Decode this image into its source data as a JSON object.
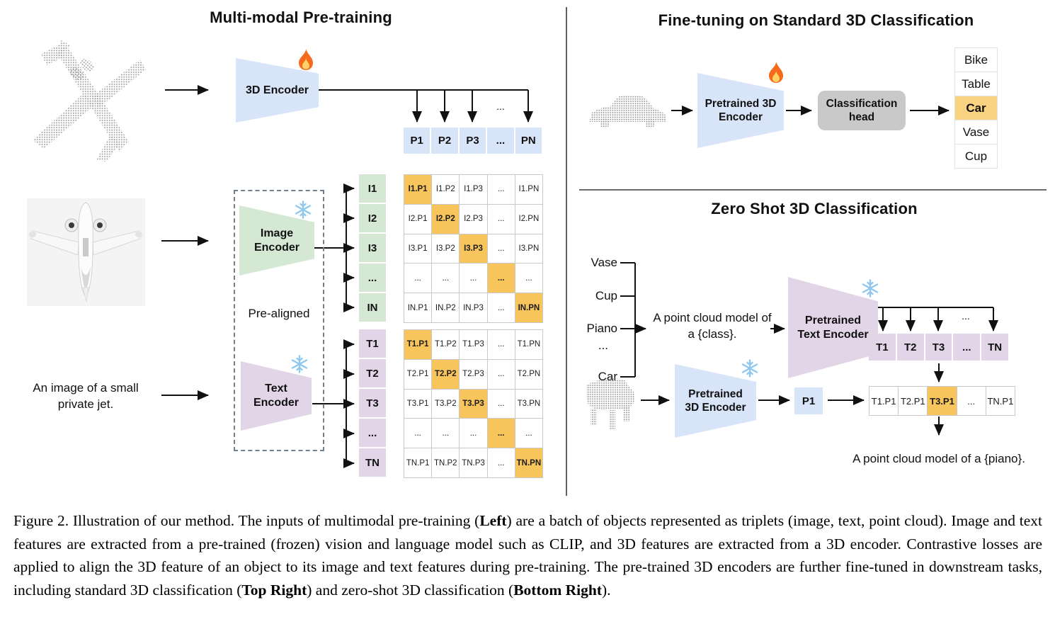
{
  "icons": {
    "trainable": "fire-icon",
    "frozen": "snowflake-icon"
  },
  "colors": {
    "blue_cell": "#d8e4f8",
    "green_cell": "#d5e8d4",
    "purple_cell": "#e1d5e7",
    "orange_highlight": "#f7c55c",
    "orange_soft": "#fad382",
    "gray_head": "#c9c9c9",
    "snowflake_blue": "#8fc8ef",
    "flame_orange": "#f66a1b"
  },
  "misc": {
    "ellipsis": "..."
  },
  "panels": {
    "pretraining": {
      "title": "Multi-modal Pre-training",
      "encoder3d_label": "3D Encoder",
      "image_encoder_label": "Image Encoder",
      "text_encoder_label": "Text Encoder",
      "prealigned_label": "Pre-aligned",
      "image_caption": "An image of a small private jet.",
      "p_row": [
        "P1",
        "P2",
        "P3",
        "...",
        "PN"
      ],
      "image_rows": [
        "I1",
        "I2",
        "I3",
        "...",
        "IN"
      ],
      "text_rows": [
        "T1",
        "T2",
        "T3",
        "...",
        "TN"
      ],
      "image_matrix": [
        [
          "I1.P1",
          "I1.P2",
          "I1.P3",
          "...",
          "I1.PN"
        ],
        [
          "I2.P1",
          "I2.P2",
          "I2.P3",
          "...",
          "I2.PN"
        ],
        [
          "I3.P1",
          "I3.P2",
          "I3.P3",
          "...",
          "I3.PN"
        ],
        [
          "...",
          "...",
          "...",
          "...",
          "..."
        ],
        [
          "IN.P1",
          "IN.P2",
          "IN.P3",
          "...",
          "IN.PN"
        ]
      ],
      "text_matrix": [
        [
          "T1.P1",
          "T1.P2",
          "T1.P3",
          "...",
          "T1.PN"
        ],
        [
          "T2.P1",
          "T2.P2",
          "T2.P3",
          "...",
          "T2.PN"
        ],
        [
          "T3.P1",
          "T3.P2",
          "T3.P3",
          "...",
          "T3.PN"
        ],
        [
          "...",
          "...",
          "...",
          "...",
          "..."
        ],
        [
          "TN.P1",
          "TN.P2",
          "TN.P3",
          "...",
          "TN.PN"
        ]
      ]
    },
    "finetune": {
      "title": "Fine-tuning on Standard 3D Classification",
      "encoder_label": "Pretrained 3D Encoder",
      "head_label": "Classification head",
      "classes": [
        "Bike",
        "Table",
        "Car",
        "Vase",
        "Cup"
      ],
      "predicted_class": "Car"
    },
    "zeroshot": {
      "title": "Zero Shot 3D Classification",
      "input_classes": [
        "Vase",
        "Cup",
        "Piano",
        "...",
        "Car"
      ],
      "prompt": "A point cloud model of a {class}.",
      "text_encoder_label": "Pretrained Text Encoder",
      "encoder_label": "Pretrained 3D Encoder",
      "point_feature": "P1",
      "text_features": [
        "T1",
        "T2",
        "T3",
        "...",
        "TN"
      ],
      "similarity_row": [
        "T1.P1",
        "T2.P1",
        "T3.P1",
        "...",
        "TN.P1"
      ],
      "highlighted_similarity": "T3.P1",
      "result": "A point cloud model of a {piano}."
    }
  },
  "caption": {
    "label": "Figure 2.",
    "segments": [
      {
        "text": "Figure 2. Illustration of our method.  The inputs of multimodal pre-training (",
        "bold": false
      },
      {
        "text": "Left",
        "bold": true
      },
      {
        "text": ") are a batch of objects represented as triplets (image, text, point cloud).  Image and text features are extracted from a pre-trained (frozen) vision and language model such as CLIP, and 3D features are extracted from a 3D encoder.  Contrastive losses are applied to align the 3D feature of an object to its image and text features during pre-training.  The pre-trained 3D encoders are further fine-tuned in downstream tasks, including standard 3D classification (",
        "bold": false
      },
      {
        "text": "Top Right",
        "bold": true
      },
      {
        "text": ") and zero-shot 3D classification (",
        "bold": false
      },
      {
        "text": "Bottom Right",
        "bold": true
      },
      {
        "text": ").",
        "bold": false
      }
    ]
  }
}
